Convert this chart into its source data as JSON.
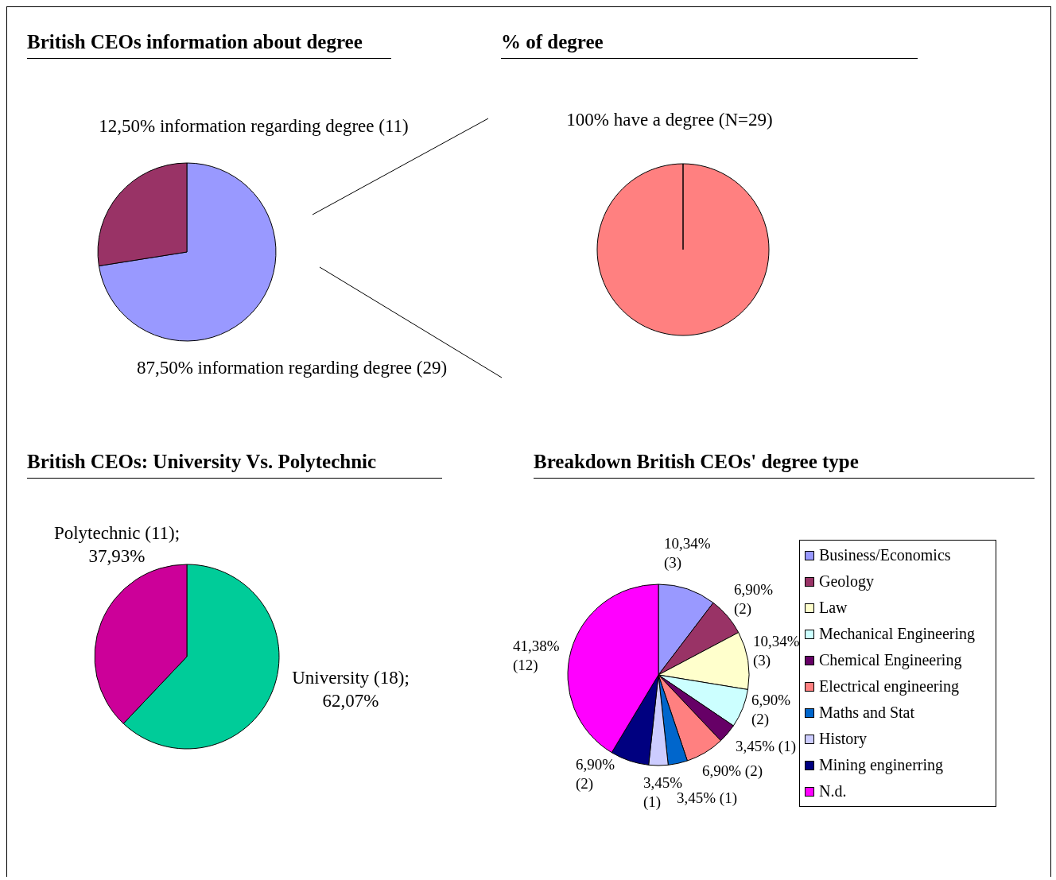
{
  "chart_data": [
    {
      "type": "pie",
      "title": "British CEOs information about degree",
      "categories": [
        null,
        null
      ],
      "values": [
        29,
        11
      ],
      "colors": [
        "#9999ff",
        "#993366"
      ],
      "value_labels": [
        "87,50% information regarding degree (29)",
        "12,50% information regarding degree (11)"
      ],
      "legend": false
    },
    {
      "type": "pie",
      "title": "% of degree",
      "categories": [
        null
      ],
      "values": [
        100
      ],
      "colors": [
        "#ff8080"
      ],
      "value_labels": [
        "100% have a degree (N=29)"
      ],
      "legend": false
    },
    {
      "type": "pie",
      "title": "British CEOs: University Vs. Polytechnic",
      "categories": [
        null,
        null
      ],
      "values": [
        62.07,
        37.93
      ],
      "colors": [
        "#00cc99",
        "#cc0099"
      ],
      "value_labels": [
        "University (18); 62,07%",
        "Polytechnic (11); 37,93%"
      ],
      "legend": false
    },
    {
      "type": "pie",
      "title": "Breakdown British CEOs' degree type",
      "categories": [
        "Business/Economics",
        "Geology",
        "Law",
        "Mechanical Engineering",
        "Chemical Engineering",
        "Electrical engineering",
        "Maths and Stat",
        "History",
        "Mining enginerring",
        "N.d."
      ],
      "values": [
        3,
        2,
        3,
        2,
        1,
        2,
        1,
        1,
        2,
        12
      ],
      "colors": [
        "#9999ff",
        "#993366",
        "#ffffcc",
        "#ccffff",
        "#660066",
        "#ff8080",
        "#0066cc",
        "#ccccff",
        "#000080",
        "#ff00ff"
      ],
      "value_labels": [
        "10,34% (3)",
        "6,90% (2)",
        "10,34% (3)",
        "6,90% (2)",
        "3,45% (1)",
        "6,90% (2)",
        "3,45% (1)",
        "3,45% (1)",
        "6,90% (2)",
        "41,38% (12)"
      ],
      "legend": "right"
    }
  ]
}
